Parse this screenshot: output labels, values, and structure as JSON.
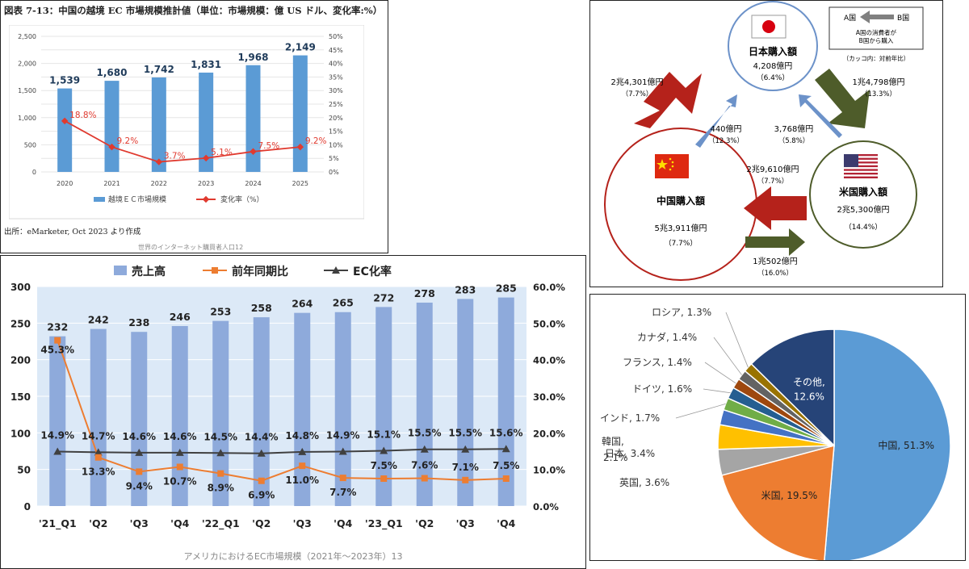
{
  "panel1": {
    "title": "図表 7-13：中国の越境 EC 市場規模推計値（単位：市場規模：億 US ドル、変化率:%）",
    "source": "出所：eMarketer, Oct 2023 より作成",
    "footer": "世界のインターネット購買者人口12",
    "chart_data": {
      "type": "bar",
      "categories": [
        "2020",
        "2021",
        "2022",
        "2023",
        "2024",
        "2025"
      ],
      "series": [
        {
          "name": "越境ＥＣ市場規模",
          "values": [
            1539,
            1680,
            1742,
            1831,
            1968,
            2149
          ],
          "labels": [
            "1,539",
            "1,680",
            "1,742",
            "1,831",
            "1,968",
            "2,149"
          ]
        },
        {
          "name": "変化率（%）",
          "type": "line",
          "values": [
            18.8,
            9.2,
            3.7,
            5.1,
            7.5,
            9.2
          ],
          "labels": [
            "18.8%",
            "9.2%",
            "3.7%",
            "5.1%",
            "7.5%",
            "9.2%"
          ]
        }
      ],
      "ylim": [
        0,
        2500
      ],
      "y2lim": [
        0,
        50
      ],
      "y_ticks": [
        "0",
        "500",
        "1,000",
        "1,500",
        "2,000",
        "2,500"
      ],
      "y2_ticks": [
        "0%",
        "5%",
        "10%",
        "15%",
        "20%",
        "25%",
        "30%",
        "35%",
        "40%",
        "45%",
        "50%"
      ],
      "legend_position": "bottom",
      "grid": true,
      "colors": {
        "bar": "#5b9bd5",
        "line": "#e03a2f"
      }
    }
  },
  "panel2": {
    "footer": "アメリカにおけるEC市場規模（2021年～2023年）13",
    "chart_data": {
      "type": "bar",
      "categories": [
        "'21_Q1",
        "'Q2",
        "'Q3",
        "'Q4",
        "'22_Q1",
        "'Q2",
        "'Q3",
        "'Q4",
        "'23_Q1",
        "'Q2",
        "'Q3",
        "'Q4"
      ],
      "series": [
        {
          "name": "売上高",
          "values": [
            232,
            242,
            238,
            246,
            253,
            258,
            264,
            265,
            272,
            278,
            283,
            285
          ]
        },
        {
          "name": "前年同期比",
          "type": "line",
          "values": [
            45.3,
            13.3,
            9.4,
            10.7,
            8.9,
            6.9,
            11.0,
            7.7,
            7.5,
            7.6,
            7.1,
            7.5
          ],
          "labels": [
            "45.3%",
            "13.3%",
            "9.4%",
            "10.7%",
            "8.9%",
            "6.9%",
            "11.0%",
            "7.7%",
            "7.5%",
            "7.6%",
            "7.1%",
            "7.5%"
          ]
        },
        {
          "name": "EC化率",
          "type": "line",
          "values": [
            14.9,
            14.7,
            14.6,
            14.6,
            14.5,
            14.4,
            14.8,
            14.9,
            15.1,
            15.5,
            15.5,
            15.6
          ],
          "labels": [
            "14.9%",
            "14.7%",
            "14.6%",
            "14.6%",
            "14.5%",
            "14.4%",
            "14.8%",
            "14.9%",
            "15.1%",
            "15.5%",
            "15.5%",
            "15.6%"
          ]
        }
      ],
      "ylim": [
        0,
        300
      ],
      "y2lim": [
        0,
        60
      ],
      "y_ticks": [
        "0",
        "50",
        "100",
        "150",
        "200",
        "250",
        "300"
      ],
      "y2_ticks": [
        "0.0%",
        "10.0%",
        "20.0%",
        "30.0%",
        "40.0%",
        "50.0%",
        "60.0%"
      ],
      "legend_position": "top",
      "colors": {
        "bar": "#8eaadb",
        "yoy": "#ed7d31",
        "ec": "#404040",
        "plot_bg": "#dce9f7"
      }
    }
  },
  "panel3": {
    "legend_box": {
      "a": "A国",
      "b": "B国",
      "line1": "A国の消費者が",
      "line2": "B国から購入",
      "note": "（カッコ内：対前年比）"
    },
    "japan": {
      "name": "日本購入額",
      "value": "4,208億円",
      "change": "（6.4%）"
    },
    "china": {
      "name": "中国購入額",
      "value": "5兆3,911億円",
      "change": "（7.7%）"
    },
    "usa": {
      "name": "米国購入額",
      "value": "2兆5,300億円",
      "change": "（14.4%）"
    },
    "flows": [
      {
        "value": "2兆4,301億円",
        "change": "（7.7%）"
      },
      {
        "value": "1兆4,798億円",
        "change": "（13.3%）"
      },
      {
        "value": "440億円",
        "change": "（12.3%）"
      },
      {
        "value": "3,768億円",
        "change": "（5.8%）"
      },
      {
        "value": "2兆9,610億円",
        "change": "（7.7%）"
      },
      {
        "value": "1兆502億円",
        "change": "（16.0%）"
      }
    ],
    "colors": {
      "red": "#b5221b",
      "green": "#4e5c2a",
      "blue": "#6c92c9"
    }
  },
  "panel4": {
    "chart_data": {
      "type": "pie",
      "slices": [
        {
          "label": "中国",
          "value": 51.3,
          "text": "中国, 51.3%",
          "color": "#5b9bd5"
        },
        {
          "label": "米国",
          "value": 19.5,
          "text": "米国, 19.5%",
          "color": "#ed7d31"
        },
        {
          "label": "英国",
          "value": 3.6,
          "text": "英国, 3.6%",
          "color": "#a5a5a5"
        },
        {
          "label": "日本",
          "value": 3.4,
          "text": "日本, 3.4%",
          "color": "#ffc000"
        },
        {
          "label": "韓国",
          "value": 2.1,
          "text": "2.1%",
          "color": "#4472c4"
        },
        {
          "label": "インド",
          "value": 1.7,
          "text": "インド, 1.7%",
          "color": "#70ad47"
        },
        {
          "label": "ドイツ",
          "value": 1.6,
          "text": "ドイツ, 1.6%",
          "color": "#255e91"
        },
        {
          "label": "フランス",
          "value": 1.4,
          "text": "フランス, 1.4%",
          "color": "#9e480e"
        },
        {
          "label": "カナダ",
          "value": 1.4,
          "text": "カナダ, 1.4%",
          "color": "#636363"
        },
        {
          "label": "ロシア",
          "value": 1.3,
          "text": "ロシア, 1.3%",
          "color": "#997300"
        },
        {
          "label": "その他",
          "value": 12.6,
          "text": "その他,",
          "text2": "12.6%",
          "color": "#264478"
        }
      ],
      "korea_label": "韓国,"
    }
  }
}
